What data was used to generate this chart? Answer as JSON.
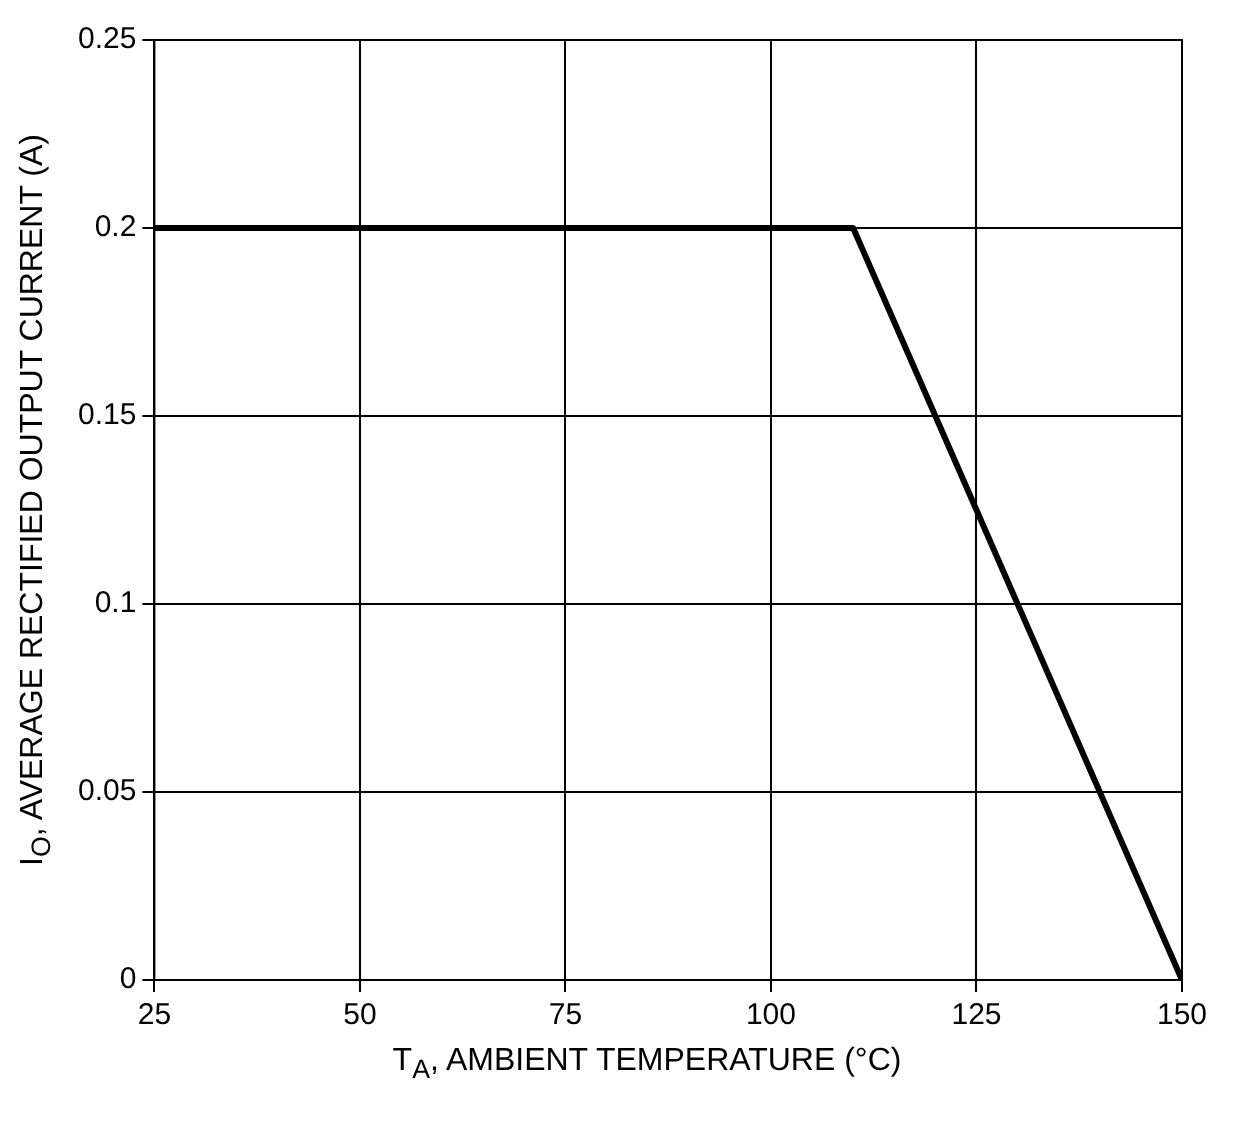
{
  "chart_data": {
    "type": "line",
    "xlabel": "T$_{A}$, AMBIENT TEMPERATURE (°C)",
    "ylabel": "I$_{O}$, AVERAGE RECTIFIED OUTPUT CURRENT (A)",
    "series": [
      {
        "color": "#000000",
        "x": [
          25,
          110,
          150
        ],
        "values": [
          0.2,
          0.2,
          0
        ]
      }
    ],
    "xlim": [
      25,
      150
    ],
    "xticks": [
      25,
      50,
      75,
      100,
      125,
      150
    ],
    "ylim": [
      0,
      0.25
    ],
    "yticks": [
      0,
      0.05,
      0.1,
      0.15,
      0.2,
      0.25
    ],
    "grid": true,
    "legend": false,
    "marker": "none",
    "line_style": "solid"
  }
}
